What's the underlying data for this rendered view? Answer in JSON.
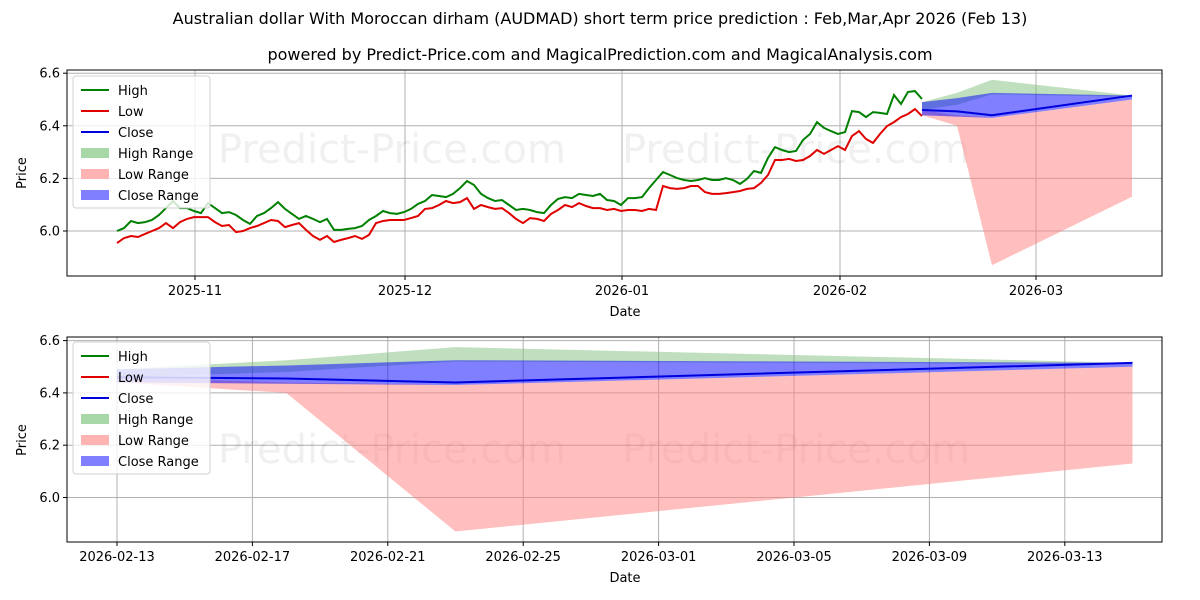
{
  "header": {
    "title": "Australian dollar With Moroccan dirham (AUDMAD) short term price prediction : Feb,Mar,Apr 2026 (Feb 13)",
    "subtitle": "powered by Predict-Price.com and MagicalPrediction.com and MagicalAnalysis.com"
  },
  "watermark": "Predict-Price.com",
  "colors": {
    "high": "#008000",
    "low": "#e00000",
    "close": "#0000dd",
    "high_range": "#a8d8a8",
    "low_range": "#ffb3b3",
    "close_range": "#6f6fff",
    "grid": "#b0b0b0"
  },
  "legend": [
    {
      "label": "High",
      "kind": "line",
      "color": "#008000"
    },
    {
      "label": "Low",
      "kind": "line",
      "color": "#e00000"
    },
    {
      "label": "Close",
      "kind": "line",
      "color": "#0000dd"
    },
    {
      "label": "High Range",
      "kind": "patch",
      "color": "#a8d8a8"
    },
    {
      "label": "Low Range",
      "kind": "patch",
      "color": "#ffb3b3"
    },
    {
      "label": "Close Range",
      "kind": "patch",
      "color": "#7f7fff"
    }
  ],
  "chart_data": [
    {
      "type": "line",
      "title": "AUDMAD history and forecast",
      "xlabel": "Date",
      "ylabel": "Price",
      "ylim": [
        5.83,
        6.61
      ],
      "yticks": [
        6.0,
        6.2,
        6.4,
        6.6
      ],
      "xticks": [
        "2025-11",
        "2025-12",
        "2026-01",
        "2026-02",
        "2026-03"
      ],
      "grid": true,
      "legend_position": "upper left",
      "history_start_date": "2025-10-20",
      "history_end_date": "2026-02-13",
      "series": [
        {
          "name": "High",
          "values": [
            6.0,
            6.011,
            6.038,
            6.03,
            6.034,
            6.042,
            6.061,
            6.087,
            6.114,
            6.087,
            6.087,
            6.076,
            6.068,
            6.106,
            6.087,
            6.068,
            6.072,
            6.061,
            6.042,
            6.027,
            6.057,
            6.068,
            6.087,
            6.11,
            6.084,
            6.065,
            6.046,
            6.057,
            6.046,
            6.034,
            6.046,
            6.004,
            6.004,
            6.008,
            6.011,
            6.019,
            6.042,
            6.057,
            6.076,
            6.068,
            6.065,
            6.072,
            6.084,
            6.103,
            6.114,
            6.137,
            6.133,
            6.129,
            6.141,
            6.163,
            6.19,
            6.175,
            6.141,
            6.125,
            6.114,
            6.118,
            6.099,
            6.08,
            6.084,
            6.08,
            6.072,
            6.068,
            6.099,
            6.122,
            6.129,
            6.125,
            6.141,
            6.137,
            6.133,
            6.141,
            6.118,
            6.114,
            6.099,
            6.125,
            6.125,
            6.129,
            6.163,
            6.194,
            6.224,
            6.213,
            6.201,
            6.194,
            6.19,
            6.194,
            6.201,
            6.194,
            6.194,
            6.201,
            6.194,
            6.179,
            6.198,
            6.228,
            6.221,
            6.278,
            6.319,
            6.308,
            6.3,
            6.304,
            6.346,
            6.369,
            6.414,
            6.392,
            6.38,
            6.369,
            6.376,
            6.456,
            6.452,
            6.433,
            6.452,
            6.449,
            6.445,
            6.517,
            6.483,
            6.529,
            6.532,
            6.502
          ]
        },
        {
          "name": "Low",
          "values": [
            5.954,
            5.973,
            5.981,
            5.977,
            5.989,
            6.0,
            6.011,
            6.03,
            6.011,
            6.034,
            6.046,
            6.053,
            6.053,
            6.053,
            6.034,
            6.019,
            6.023,
            5.996,
            6.0,
            6.011,
            6.019,
            6.03,
            6.042,
            6.038,
            6.015,
            6.023,
            6.03,
            6.004,
            5.981,
            5.966,
            5.981,
            5.958,
            5.966,
            5.973,
            5.981,
            5.97,
            5.985,
            6.03,
            6.038,
            6.042,
            6.042,
            6.042,
            6.049,
            6.057,
            6.084,
            6.087,
            6.099,
            6.114,
            6.106,
            6.11,
            6.125,
            6.084,
            6.099,
            6.091,
            6.084,
            6.087,
            6.068,
            6.046,
            6.03,
            6.049,
            6.046,
            6.038,
            6.065,
            6.08,
            6.099,
            6.091,
            6.106,
            6.095,
            6.087,
            6.087,
            6.08,
            6.084,
            6.076,
            6.08,
            6.08,
            6.076,
            6.084,
            6.08,
            6.171,
            6.163,
            6.16,
            6.163,
            6.171,
            6.171,
            6.148,
            6.141,
            6.141,
            6.144,
            6.148,
            6.152,
            6.16,
            6.163,
            6.183,
            6.213,
            6.27,
            6.27,
            6.274,
            6.266,
            6.27,
            6.285,
            6.308,
            6.293,
            6.308,
            6.323,
            6.308,
            6.361,
            6.38,
            6.35,
            6.335,
            6.369,
            6.399,
            6.414,
            6.433,
            6.445,
            6.464,
            6.437
          ]
        }
      ],
      "forecast": {
        "dates": [
          "2026-02-13",
          "2026-02-18",
          "2026-02-23",
          "2026-03-15"
        ],
        "day_offsets": [
          0,
          5,
          10,
          30
        ],
        "close": [
          6.46,
          6.455,
          6.44,
          6.515
        ],
        "close_range_upper": [
          6.49,
          6.505,
          6.525,
          6.515
        ],
        "close_range_lower": [
          6.44,
          6.435,
          6.43,
          6.5
        ],
        "high_range_upper": [
          6.49,
          6.525,
          6.575,
          6.515
        ],
        "high_range_lower": [
          6.46,
          6.48,
          6.52,
          6.51
        ],
        "low_range_upper": [
          6.46,
          6.44,
          6.43,
          6.5
        ],
        "low_range_lower": [
          6.44,
          6.4,
          5.87,
          6.13
        ]
      }
    },
    {
      "type": "line",
      "title": "AUDMAD forecast detail",
      "xlabel": "Date",
      "ylabel": "Price",
      "ylim": [
        5.83,
        6.61
      ],
      "yticks": [
        6.0,
        6.2,
        6.4,
        6.6
      ],
      "xticks": [
        "2026-02-13",
        "2026-02-17",
        "2026-02-21",
        "2026-02-25",
        "2026-03-01",
        "2026-03-05",
        "2026-03-09",
        "2026-03-13"
      ],
      "grid": true,
      "legend_position": "upper left",
      "uses_forecast_of": 0
    }
  ],
  "charts": {
    "top": {
      "ylabel": "Price",
      "xlabel": "Date",
      "yticks": [
        "6.0",
        "6.2",
        "6.4",
        "6.6"
      ],
      "xticks": [
        "2025-11",
        "2025-12",
        "2026-01",
        "2026-02",
        "2026-03"
      ]
    },
    "bottom": {
      "ylabel": "Price",
      "xlabel": "Date",
      "yticks": [
        "6.0",
        "6.2",
        "6.4",
        "6.6"
      ],
      "xticks": [
        "2026-02-13",
        "2026-02-17",
        "2026-02-21",
        "2026-02-25",
        "2026-03-01",
        "2026-03-05",
        "2026-03-09",
        "2026-03-13"
      ]
    }
  }
}
